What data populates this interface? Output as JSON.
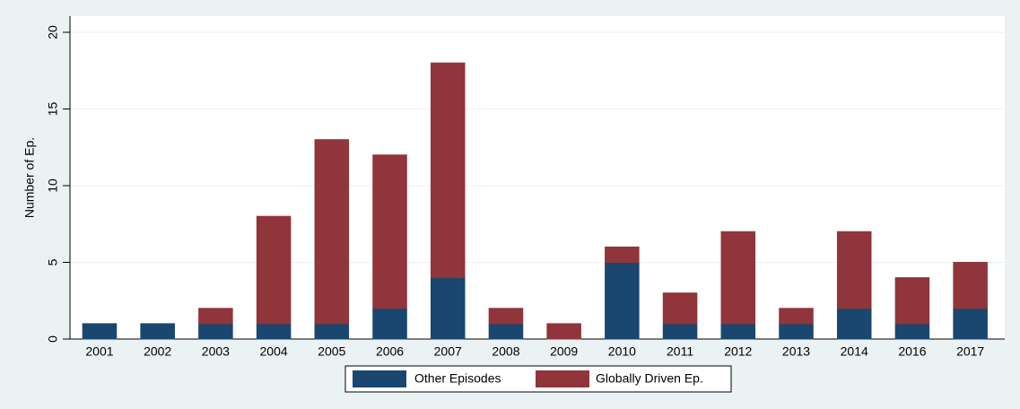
{
  "chart_data": {
    "type": "stacked_bar",
    "y_label": "Number of Ep.",
    "categories": [
      "2001",
      "2002",
      "2003",
      "2004",
      "2005",
      "2006",
      "2007",
      "2008",
      "2009",
      "2010",
      "2011",
      "2012",
      "2013",
      "2014",
      "2016",
      "2017"
    ],
    "series": [
      {
        "name": "Other Episodes",
        "color": "#1a476f",
        "values": [
          1,
          1,
          1,
          1,
          1,
          2,
          4,
          1,
          0,
          5,
          1,
          1,
          1,
          2,
          1,
          2
        ]
      },
      {
        "name": "Globally Driven Ep.",
        "color": "#90353b",
        "values": [
          0,
          0,
          1,
          7,
          12,
          10,
          14,
          1,
          1,
          1,
          2,
          6,
          1,
          5,
          3,
          3
        ]
      }
    ],
    "ylim": [
      0,
      20
    ],
    "yticks": [
      0,
      5,
      10,
      15,
      20
    ],
    "grid": true,
    "legend": "bottom"
  }
}
